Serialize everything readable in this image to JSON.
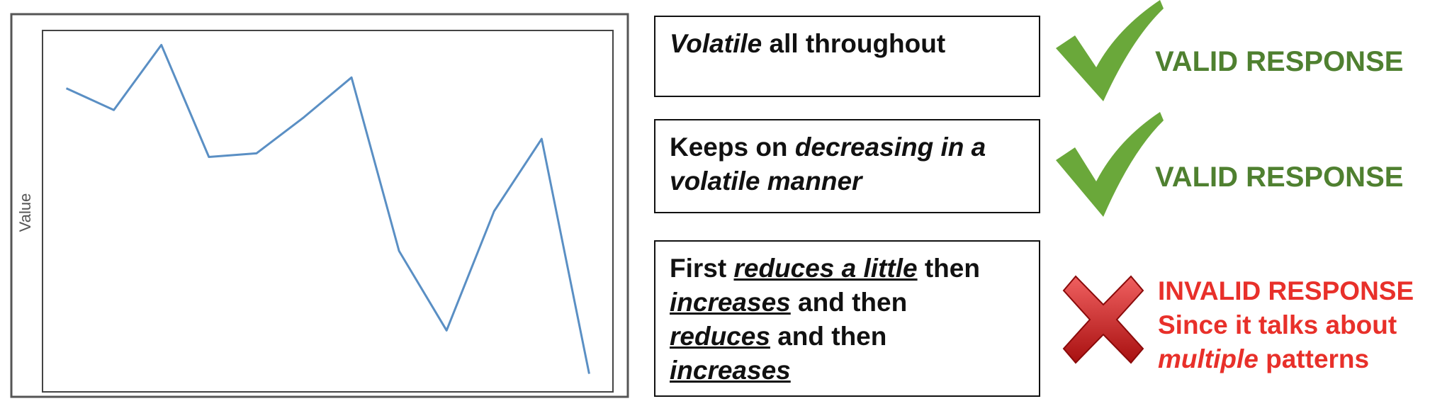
{
  "chart_data": {
    "type": "line",
    "y_label": "Value",
    "x": [
      1,
      2,
      3,
      4,
      5,
      6,
      7,
      8,
      9,
      10,
      11,
      12
    ],
    "values": [
      84,
      78,
      96,
      65,
      66,
      76,
      87,
      39,
      17,
      50,
      70,
      5
    ],
    "xlim": [
      0.5,
      12.5
    ],
    "ylim": [
      0,
      100
    ],
    "color": "#5a8fc4",
    "grid": false
  },
  "responses": [
    {
      "lines": [
        [
          {
            "text": "Volatile",
            "em": true
          },
          {
            "text": " all throughout"
          }
        ]
      ],
      "verdict": {
        "valid": true,
        "lines": [
          [
            {
              "text": "VALID RESPONSE"
            }
          ]
        ]
      }
    },
    {
      "lines": [
        [
          {
            "text": "Keeps on "
          },
          {
            "text": "decreasing in a",
            "em": true
          }
        ],
        [
          {
            "text": "volatile manner",
            "em": true
          }
        ]
      ],
      "verdict": {
        "valid": true,
        "lines": [
          [
            {
              "text": "VALID RESPONSE"
            }
          ]
        ]
      }
    },
    {
      "lines": [
        [
          {
            "text": "First "
          },
          {
            "text": "reduces a little",
            "em": true,
            "u": true
          },
          {
            "text": " then"
          }
        ],
        [
          {
            "text": "increases",
            "em": true,
            "u": true
          },
          {
            "text": " and then"
          }
        ],
        [
          {
            "text": "reduces",
            "em": true,
            "u": true
          },
          {
            "text": " and then"
          }
        ],
        [
          {
            "text": "increases",
            "em": true,
            "u": true
          }
        ]
      ],
      "verdict": {
        "valid": false,
        "lines": [
          [
            {
              "text": "INVALID RESPONSE"
            }
          ],
          [
            {
              "text": "Since it talks about"
            }
          ],
          [
            {
              "text": "multiple",
              "em": true
            },
            {
              "text": " patterns"
            }
          ]
        ]
      }
    }
  ]
}
